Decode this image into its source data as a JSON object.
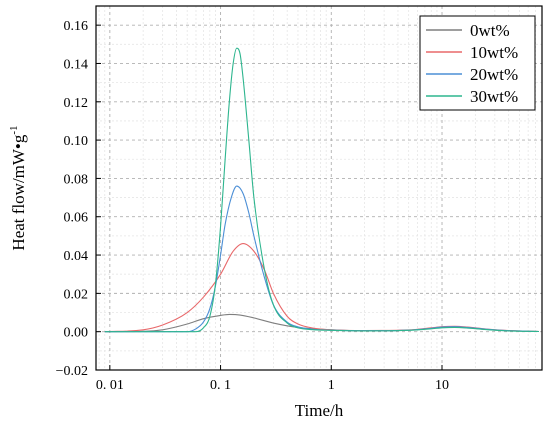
{
  "chart_data": {
    "type": "line",
    "xlabel": "Time/h",
    "ylabel": "Heat flow/mW•g",
    "ylabel_sup": "-1",
    "x_scale": "log",
    "xlim": [
      0.0075,
      80
    ],
    "ylim": [
      -0.02,
      0.17
    ],
    "x_ticks": [
      {
        "value": 0.01,
        "label": "0. 01"
      },
      {
        "value": 0.1,
        "label": "0. 1"
      },
      {
        "value": 1,
        "label": "1"
      },
      {
        "value": 10,
        "label": "10"
      }
    ],
    "y_ticks": [
      {
        "value": -0.02,
        "label": "−0.02"
      },
      {
        "value": 0.0,
        "label": "0.00"
      },
      {
        "value": 0.02,
        "label": "0.02"
      },
      {
        "value": 0.04,
        "label": "0.04"
      },
      {
        "value": 0.06,
        "label": "0.06"
      },
      {
        "value": 0.08,
        "label": "0.08"
      },
      {
        "value": 0.1,
        "label": "0.10"
      },
      {
        "value": 0.12,
        "label": "0.12"
      },
      {
        "value": 0.14,
        "label": "0.14"
      },
      {
        "value": 0.16,
        "label": "0.16"
      }
    ],
    "grid": true,
    "legend_position": "top-right",
    "series": [
      {
        "name": "0wt%",
        "color": "#7f7f7f",
        "points": [
          [
            0.009,
            0
          ],
          [
            0.02,
            0.0002
          ],
          [
            0.03,
            0.001
          ],
          [
            0.05,
            0.004
          ],
          [
            0.07,
            0.0068
          ],
          [
            0.1,
            0.0085
          ],
          [
            0.12,
            0.009
          ],
          [
            0.15,
            0.0087
          ],
          [
            0.2,
            0.0072
          ],
          [
            0.3,
            0.0045
          ],
          [
            0.5,
            0.0022
          ],
          [
            1,
            0.001
          ],
          [
            2,
            0.0005
          ],
          [
            5,
            0.0008
          ],
          [
            8,
            0.0018
          ],
          [
            10,
            0.0022
          ],
          [
            13,
            0.0023
          ],
          [
            17,
            0.002
          ],
          [
            25,
            0.0012
          ],
          [
            40,
            0.0005
          ],
          [
            75,
            0.0001
          ]
        ]
      },
      {
        "name": "10wt%",
        "color": "#e8686a",
        "points": [
          [
            0.009,
            0
          ],
          [
            0.02,
            0.001
          ],
          [
            0.03,
            0.0035
          ],
          [
            0.05,
            0.01
          ],
          [
            0.07,
            0.018
          ],
          [
            0.1,
            0.03
          ],
          [
            0.13,
            0.042
          ],
          [
            0.16,
            0.046
          ],
          [
            0.2,
            0.042
          ],
          [
            0.25,
            0.032
          ],
          [
            0.3,
            0.02
          ],
          [
            0.4,
            0.008
          ],
          [
            0.5,
            0.004
          ],
          [
            0.7,
            0.0018
          ],
          [
            1,
            0.001
          ],
          [
            2,
            0.0006
          ],
          [
            5,
            0.0009
          ],
          [
            8,
            0.002
          ],
          [
            10,
            0.0026
          ],
          [
            13,
            0.0028
          ],
          [
            17,
            0.0024
          ],
          [
            25,
            0.0014
          ],
          [
            40,
            0.0006
          ],
          [
            75,
            0.0001
          ]
        ]
      },
      {
        "name": "20wt%",
        "color": "#4c8fd6",
        "points": [
          [
            0.009,
            0
          ],
          [
            0.05,
            0
          ],
          [
            0.06,
            0.0015
          ],
          [
            0.07,
            0.005
          ],
          [
            0.08,
            0.012
          ],
          [
            0.09,
            0.024
          ],
          [
            0.1,
            0.04
          ],
          [
            0.11,
            0.056
          ],
          [
            0.125,
            0.07
          ],
          [
            0.14,
            0.076
          ],
          [
            0.16,
            0.072
          ],
          [
            0.18,
            0.062
          ],
          [
            0.2,
            0.05
          ],
          [
            0.25,
            0.028
          ],
          [
            0.3,
            0.014
          ],
          [
            0.4,
            0.005
          ],
          [
            0.5,
            0.0025
          ],
          [
            0.7,
            0.0012
          ],
          [
            1,
            0.0008
          ],
          [
            2,
            0.0005
          ],
          [
            5,
            0.0008
          ],
          [
            8,
            0.0018
          ],
          [
            10,
            0.0024
          ],
          [
            13,
            0.0026
          ],
          [
            17,
            0.0022
          ],
          [
            25,
            0.0013
          ],
          [
            40,
            0.0005
          ],
          [
            75,
            0.0001
          ]
        ]
      },
      {
        "name": "30wt%",
        "color": "#2db58e",
        "points": [
          [
            0.009,
            0
          ],
          [
            0.06,
            0
          ],
          [
            0.07,
            0.002
          ],
          [
            0.08,
            0.008
          ],
          [
            0.09,
            0.025
          ],
          [
            0.1,
            0.055
          ],
          [
            0.11,
            0.09
          ],
          [
            0.12,
            0.12
          ],
          [
            0.13,
            0.14
          ],
          [
            0.14,
            0.148
          ],
          [
            0.15,
            0.145
          ],
          [
            0.16,
            0.132
          ],
          [
            0.18,
            0.1
          ],
          [
            0.2,
            0.07
          ],
          [
            0.25,
            0.032
          ],
          [
            0.3,
            0.014
          ],
          [
            0.4,
            0.0045
          ],
          [
            0.5,
            0.002
          ],
          [
            0.7,
            0.001
          ],
          [
            1,
            0.0007
          ],
          [
            2,
            0.0004
          ],
          [
            5,
            0.0007
          ],
          [
            8,
            0.0015
          ],
          [
            10,
            0.002
          ],
          [
            13,
            0.0022
          ],
          [
            17,
            0.0019
          ],
          [
            25,
            0.0011
          ],
          [
            40,
            0.0004
          ],
          [
            75,
            0.0001
          ]
        ]
      }
    ]
  }
}
